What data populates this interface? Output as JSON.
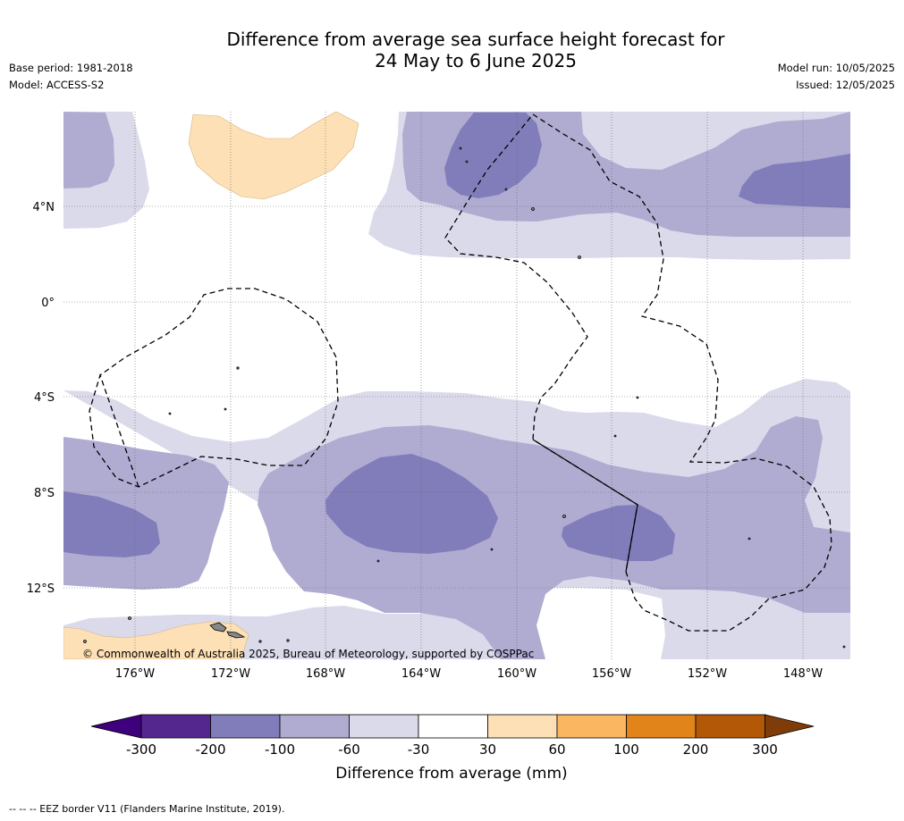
{
  "title": {
    "line1": "Difference from average sea surface height forecast for",
    "line2": "24 May to 6 June 2025"
  },
  "meta_left": {
    "base_period": "Base period: 1981-2018",
    "model": "Model: ACCESS-S2"
  },
  "meta_right": {
    "model_run": "Model run: 10/05/2025",
    "issued": "Issued: 12/05/2025"
  },
  "map": {
    "credit": "© Commonwealth of Australia 2025, Bureau of Meteorology, supported by COSPPac",
    "lat_ticks": [
      "4°N",
      "0°",
      "4°S",
      "8°S",
      "12°S"
    ],
    "lon_ticks": [
      "176°W",
      "172°W",
      "168°W",
      "164°W",
      "160°W",
      "156°W",
      "152°W",
      "148°W"
    ],
    "land_color": "#888888",
    "eez_line": "dashed black"
  },
  "colorbar": {
    "title": "Difference from average (mm)",
    "tick_labels": [
      "-300",
      "-200",
      "-100",
      "-60",
      "-30",
      "30",
      "60",
      "100",
      "200",
      "300"
    ],
    "colors": [
      "#3f007d",
      "#54278f",
      "#807dba",
      "#b0abd1",
      "#dadaeb",
      "#ffffff",
      "#fde0b6",
      "#fab660",
      "#e1841a",
      "#b35806",
      "#7f3b08"
    ]
  },
  "eez_note": "--  --  -- EEZ border V11 (Flanders Marine Institute, 2019)."
}
